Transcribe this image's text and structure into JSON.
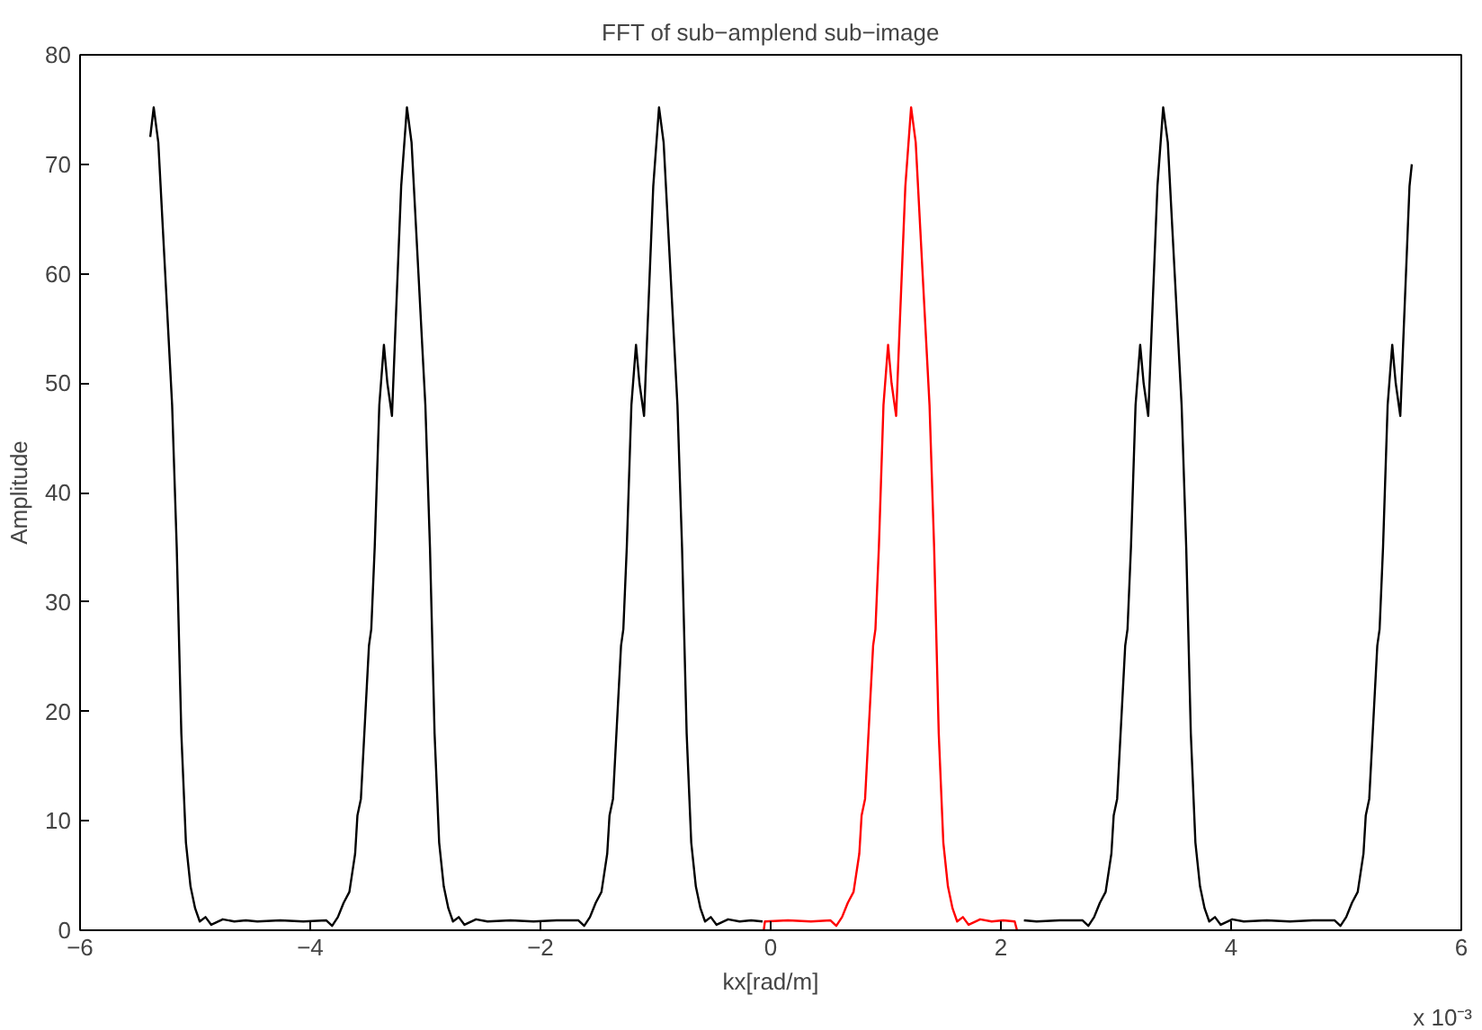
{
  "chart_data": {
    "type": "line",
    "title": "FFT of sub−amplend sub−image",
    "xlabel": "kx[rad/m]",
    "ylabel": "Amplitude",
    "annotations": [
      "x 10⁻³"
    ],
    "xlim": [
      -6,
      6
    ],
    "ylim": [
      0,
      80
    ],
    "xticks": [
      {
        "value": -6,
        "label": "−6"
      },
      {
        "value": -4,
        "label": "−4"
      },
      {
        "value": -2,
        "label": "−2"
      },
      0,
      2,
      4,
      6
    ],
    "yticks": [
      0,
      10,
      20,
      30,
      40,
      50,
      60,
      70,
      80
    ],
    "grid": false,
    "series": [
      {
        "color": "#000000",
        "x": [
          -5.39,
          -5.36,
          -5.32,
          -5.26,
          -5.2,
          -5.16,
          -5.12,
          -5.08,
          -5.04,
          -5.0,
          -4.96,
          -4.91,
          -4.86,
          -4.76,
          -4.66,
          -4.56,
          -4.46,
          -4.26,
          -4.06,
          -3.86,
          -3.81,
          -3.76,
          -3.71,
          -3.66,
          -3.61,
          -3.59,
          -3.56,
          -3.52,
          -3.49,
          -3.47,
          -3.44,
          -3.4,
          -3.36,
          -3.33,
          -3.29,
          -3.26,
          -3.21,
          -3.16,
          -3.12,
          -3.06,
          -3.0,
          -2.96,
          -2.92,
          -2.88,
          -2.84,
          -2.8,
          -2.76,
          -2.71,
          -2.66,
          -2.56,
          -2.46,
          -2.26,
          -2.06,
          -1.86,
          -1.67,
          -1.62,
          -1.57,
          -1.52,
          -1.47,
          -1.42,
          -1.4,
          -1.37,
          -1.33,
          -1.3,
          -1.28,
          -1.25,
          -1.21,
          -1.17,
          -1.14,
          -1.1,
          -1.07,
          -1.02,
          -0.97,
          -0.93,
          -0.87,
          -0.81,
          -0.77,
          -0.73,
          -0.69,
          -0.65,
          -0.61,
          -0.57,
          -0.52,
          -0.47,
          -0.37,
          -0.27,
          -0.17,
          -0.07,
          1.0,
          2.2,
          2.31,
          2.51,
          2.71,
          2.76,
          2.81,
          2.86,
          2.91,
          2.96,
          2.98,
          3.01,
          3.05,
          3.08,
          3.1,
          3.13,
          3.17,
          3.21,
          3.24,
          3.28,
          3.31,
          3.36,
          3.41,
          3.45,
          3.51,
          3.57,
          3.61,
          3.65,
          3.69,
          3.73,
          3.77,
          3.81,
          3.86,
          3.91,
          4.01,
          4.11,
          4.31,
          4.51,
          4.71,
          4.9,
          4.95,
          5.0,
          5.05,
          5.1,
          5.15,
          5.17,
          5.2,
          5.24,
          5.27,
          5.29,
          5.32,
          5.36,
          5.4,
          5.43,
          5.47,
          5.5,
          5.55,
          5.57
        ],
        "values": [
          72.5,
          75.2,
          72,
          60,
          48,
          35,
          18,
          8,
          4,
          2,
          0.8,
          1.2,
          0.5,
          1.0,
          0.8,
          0.9,
          0.8,
          0.9,
          0.8,
          0.9,
          0.4,
          1.2,
          2.5,
          3.5,
          7,
          10.5,
          12,
          20,
          26,
          27.5,
          35,
          48,
          53.5,
          50,
          47,
          55,
          68,
          75.2,
          72,
          60,
          48,
          35,
          18,
          8,
          4,
          2,
          0.8,
          1.2,
          0.5,
          1.0,
          0.8,
          0.9,
          0.8,
          0.9,
          0.9,
          0.4,
          1.2,
          2.5,
          3.5,
          7,
          10.5,
          12,
          20,
          26,
          27.5,
          35,
          48,
          53.5,
          50,
          47,
          55,
          68,
          75.2,
          72,
          60,
          48,
          35,
          18,
          8,
          4,
          2,
          0.8,
          1.2,
          0.5,
          1.0,
          0.8,
          0.9,
          0.8,
          null,
          0.9,
          0.8,
          0.9,
          0.9,
          0.4,
          1.2,
          2.5,
          3.5,
          7,
          10.5,
          12,
          20,
          26,
          27.5,
          35,
          48,
          53.5,
          50,
          47,
          55,
          68,
          75.2,
          72,
          60,
          48,
          35,
          18,
          8,
          4,
          2,
          0.8,
          1.2,
          0.5,
          1.0,
          0.8,
          0.9,
          0.8,
          0.9,
          0.9,
          0.4,
          1.2,
          2.5,
          3.5,
          7,
          10.5,
          12,
          20,
          26,
          27.5,
          35,
          48,
          53.5,
          50,
          47,
          55,
          68,
          70
        ]
      },
      {
        "color": "#ff0000",
        "x": [
          -0.06,
          -0.05,
          0.15,
          0.35,
          0.52,
          0.57,
          0.62,
          0.67,
          0.72,
          0.77,
          0.79,
          0.82,
          0.86,
          0.89,
          0.91,
          0.94,
          0.98,
          1.02,
          1.05,
          1.09,
          1.12,
          1.17,
          1.22,
          1.26,
          1.32,
          1.38,
          1.42,
          1.46,
          1.5,
          1.54,
          1.58,
          1.62,
          1.67,
          1.72,
          1.82,
          1.92,
          2.02,
          2.12,
          2.14
        ],
        "values": [
          0,
          0.8,
          0.9,
          0.8,
          0.9,
          0.4,
          1.2,
          2.5,
          3.5,
          7,
          10.5,
          12,
          20,
          26,
          27.5,
          35,
          48,
          53.5,
          50,
          47,
          55,
          68,
          75.2,
          72,
          60,
          48,
          35,
          18,
          8,
          4,
          2,
          0.8,
          1.2,
          0.5,
          1.0,
          0.8,
          0.9,
          0.8,
          0
        ]
      }
    ]
  }
}
